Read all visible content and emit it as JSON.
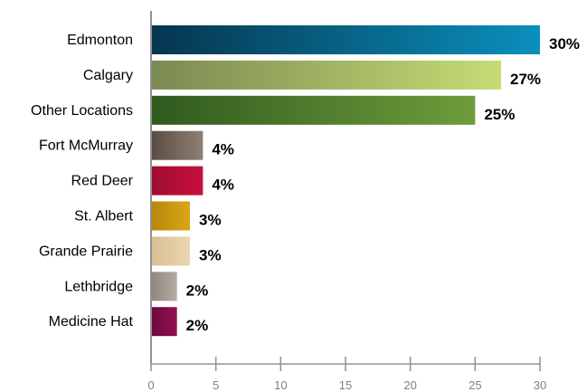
{
  "chart_data": {
    "type": "bar",
    "orientation": "horizontal",
    "categories": [
      "Edmonton",
      "Calgary",
      "Other Locations",
      "Fort McMurray",
      "Red Deer",
      "St. Albert",
      "Grande Prairie",
      "Lethbridge",
      "Medicine Hat"
    ],
    "values": [
      30,
      27,
      25,
      4,
      4,
      3,
      3,
      2,
      2
    ],
    "value_labels": [
      "30%",
      "27%",
      "25%",
      "4%",
      "4%",
      "3%",
      "3%",
      "2%",
      "2%"
    ],
    "xlim": [
      0,
      30
    ],
    "x_ticks": [
      0,
      5,
      10,
      15,
      20,
      25,
      30
    ],
    "grid": false,
    "legend": "none",
    "bar_colors": [
      [
        "#05364e",
        "#0a8fbd"
      ],
      [
        "#7a8a52",
        "#c6dc74"
      ],
      [
        "#2f5a1e",
        "#6f9c3b"
      ],
      [
        "#5a4c42",
        "#8f8074"
      ],
      [
        "#9e0d32",
        "#c8103e"
      ],
      [
        "#b8860b",
        "#d9a618"
      ],
      [
        "#d9bd95",
        "#ecd5b0"
      ],
      [
        "#8f857c",
        "#b4aca4"
      ],
      [
        "#6a0a3d",
        "#941050"
      ]
    ]
  }
}
